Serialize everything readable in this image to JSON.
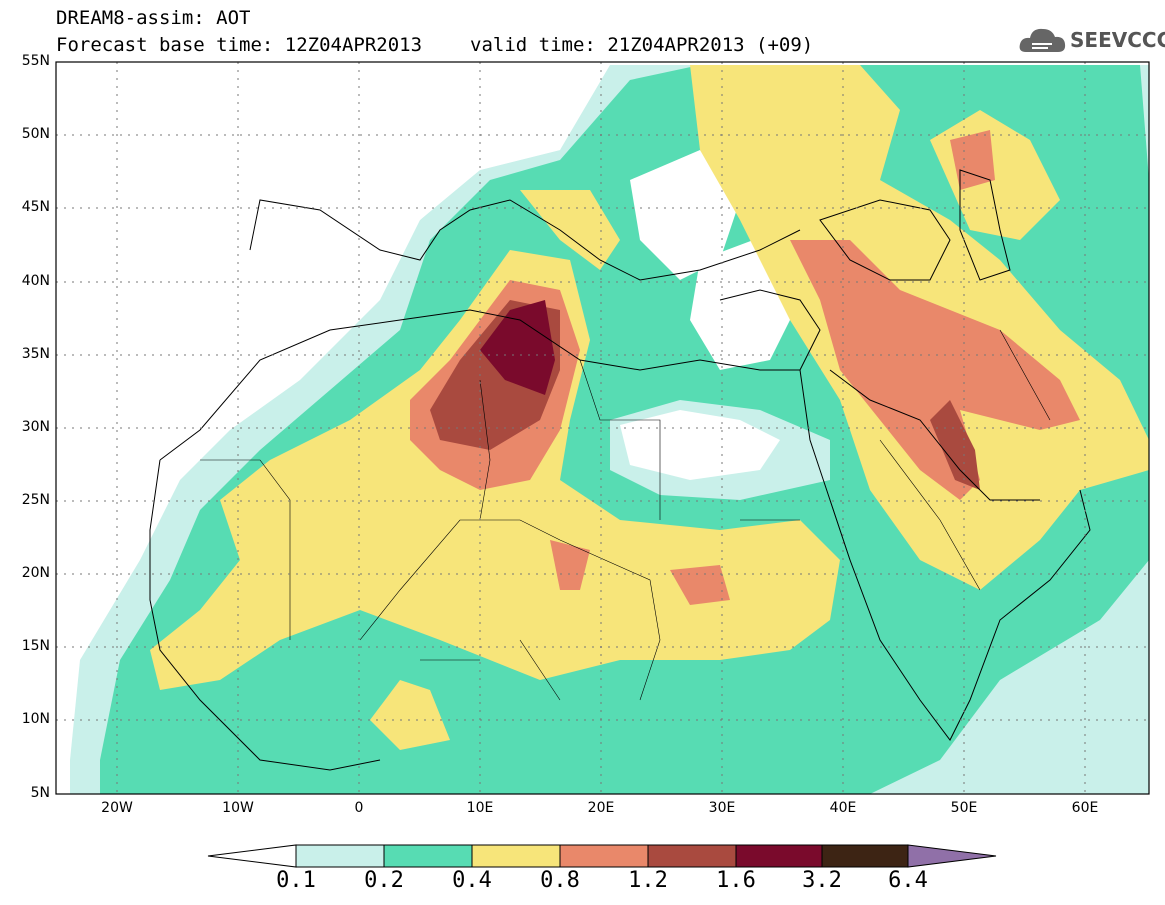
{
  "title": {
    "model": "DREAM8-assim: AOT",
    "base_time": "Forecast base time: 12Z04APR2013",
    "valid_time": "valid time: 21Z04APR2013 (+09)"
  },
  "logo": {
    "text": "SEEVCCC",
    "icon": "cloud-icon"
  },
  "axes": {
    "lat_labels": [
      "55N",
      "50N",
      "45N",
      "40N",
      "35N",
      "30N",
      "25N",
      "20N",
      "15N",
      "10N",
      "5N"
    ],
    "lon_labels": [
      "20W",
      "10W",
      "0",
      "10E",
      "20E",
      "30E",
      "40E",
      "50E",
      "60E"
    ]
  },
  "colorbar": {
    "levels": [
      "0.1",
      "0.2",
      "0.4",
      "0.8",
      "1.2",
      "1.6",
      "3.2",
      "6.4"
    ],
    "colors": [
      "#c9f0ea",
      "#57dcb3",
      "#f7e57a",
      "#e9886a",
      "#a94a3f",
      "#7a0a2c",
      "#3d2414",
      "#9070a8"
    ]
  }
}
